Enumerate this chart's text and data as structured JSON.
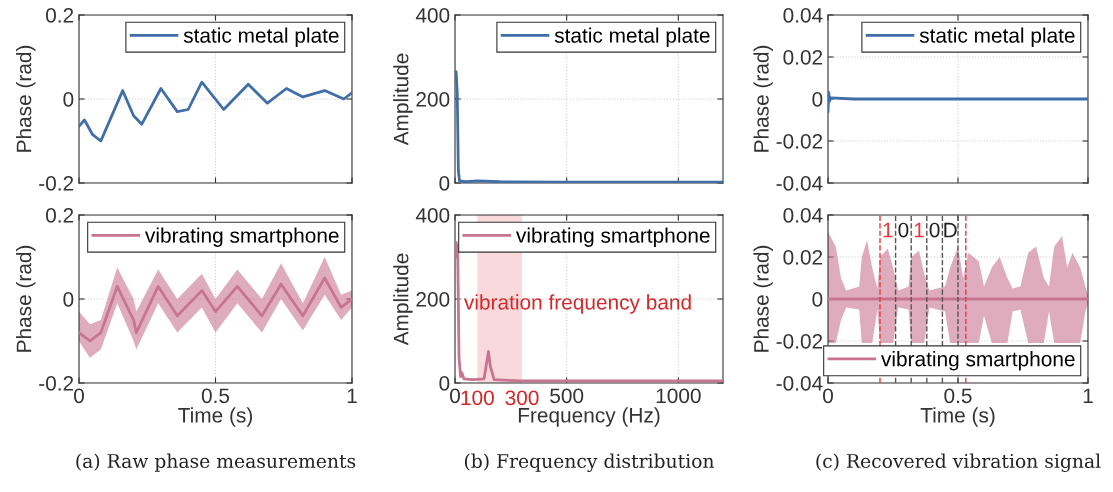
{
  "chart_data": [
    {
      "type": "line",
      "ylabel": "Phase (rad)",
      "xlim": [
        0,
        1
      ],
      "ylim": [
        -0.2,
        0.2
      ],
      "xticks": [
        0,
        0.5,
        1
      ],
      "yticks": [
        {
          "value": -0.2,
          "label": "-0.2"
        },
        0,
        0.2
      ],
      "grid": true,
      "legend": "top right",
      "tick_labels": "y",
      "series": [
        {
          "name": "static metal plate",
          "color": "#3f6ea8",
          "x": [
            0,
            0.02,
            0.05,
            0.08,
            0.1,
            0.16,
            0.2,
            0.23,
            0.3,
            0.36,
            0.4,
            0.45,
            0.53,
            0.62,
            0.69,
            0.76,
            0.82,
            0.9,
            0.97,
            1
          ],
          "values": [
            -0.065,
            -0.05,
            -0.085,
            -0.1,
            -0.07,
            0.02,
            -0.04,
            -0.06,
            0.025,
            -0.03,
            -0.025,
            0.04,
            -0.025,
            0.035,
            -0.01,
            0.025,
            0.005,
            0.02,
            0.0,
            0.015
          ]
        }
      ]
    },
    {
      "type": "line",
      "ylabel": "Amplitude",
      "xlim": [
        0,
        1200
      ],
      "ylim": [
        0,
        400
      ],
      "xticks": [
        0,
        500,
        1000
      ],
      "yticks": [
        0,
        200,
        400
      ],
      "grid": true,
      "legend": "top right",
      "tick_labels": "y",
      "series": [
        {
          "name": "static metal plate",
          "color": "#3f6ea8",
          "x": [
            0,
            5,
            10,
            15,
            20,
            50,
            100,
            200,
            500,
            1200
          ],
          "values": [
            260,
            265,
            215,
            30,
            5,
            3,
            5,
            3,
            2,
            2
          ]
        }
      ]
    },
    {
      "type": "line",
      "ylabel": "Phase (rad)",
      "xlim": [
        0,
        1
      ],
      "ylim": [
        -0.04,
        0.04
      ],
      "xticks": [
        0,
        0.5,
        1
      ],
      "yticks": [
        {
          "value": -0.04,
          "label": "-0.04"
        },
        {
          "value": -0.02,
          "label": "-0.02"
        },
        0,
        0.02,
        0.04
      ],
      "grid": true,
      "legend": "top right",
      "tick_labels": "y",
      "series": [
        {
          "name": "static metal plate",
          "color": "#3f6ea8",
          "x": [
            0,
            0.003,
            0.006,
            0.01,
            0.1,
            0.25,
            0.5,
            0.75,
            1
          ],
          "values": [
            -0.006,
            0.003,
            -0.001,
            0.0005,
            0.0,
            0.0,
            0.0,
            0.0,
            0.0
          ]
        }
      ]
    },
    {
      "type": "line",
      "xlabel": "Time (s)",
      "ylabel": "Phase (rad)",
      "xlim": [
        0,
        1
      ],
      "ylim": [
        -0.2,
        0.2
      ],
      "xticks": [
        0,
        0.5,
        1
      ],
      "yticks": [
        {
          "value": -0.2,
          "label": "-0.2"
        },
        0,
        0.2
      ],
      "grid": true,
      "legend": "top right",
      "annotations": [
        "(a) Raw phase measurements"
      ],
      "series": [
        {
          "name": "vibrating smartphone",
          "color": "#c87490",
          "x": [
            0,
            0.04,
            0.08,
            0.14,
            0.2,
            0.21,
            0.29,
            0.36,
            0.45,
            0.5,
            0.58,
            0.67,
            0.74,
            0.82,
            0.9,
            0.96,
            1
          ],
          "values": [
            -0.08,
            -0.1,
            -0.08,
            0.03,
            -0.05,
            -0.08,
            0.03,
            -0.04,
            0.02,
            -0.03,
            0.03,
            -0.04,
            0.035,
            -0.04,
            0.05,
            -0.02,
            0.0
          ],
          "lower": [
            -0.1,
            -0.14,
            -0.12,
            -0.01,
            -0.1,
            -0.12,
            -0.01,
            -0.08,
            -0.02,
            -0.08,
            -0.01,
            -0.08,
            0.0,
            -0.075,
            0.01,
            -0.05,
            -0.02
          ],
          "upper": [
            -0.03,
            -0.06,
            -0.05,
            0.075,
            0.0,
            -0.03,
            0.07,
            0.0,
            0.06,
            0.0,
            0.07,
            0.0,
            0.085,
            -0.01,
            0.1,
            0.01,
            0.02
          ]
        }
      ]
    },
    {
      "type": "line",
      "xlabel": "Frequency (Hz)",
      "ylabel": "Amplitude",
      "xlim": [
        0,
        1200
      ],
      "ylim": [
        0,
        400
      ],
      "xticks": [
        0,
        500,
        1000
      ],
      "yticks": [
        0,
        200,
        400
      ],
      "grid": true,
      "legend": "top right",
      "bands": [
        {
          "axis": "x",
          "from": 100,
          "to": 300,
          "label": "vibration frequency band",
          "color": "#f9d9dc"
        }
      ],
      "annotations": [
        {
          "text": "100",
          "x": 100,
          "y": 0
        },
        {
          "text": "300",
          "x": 300,
          "y": 0
        },
        "(b) Frequency distribution"
      ],
      "series": [
        {
          "name": "vibrating smartphone",
          "color": "#c87490",
          "x": [
            0,
            5,
            12,
            18,
            25,
            30,
            40,
            80,
            130,
            150,
            158,
            175,
            300,
            1200
          ],
          "values": [
            300,
            335,
            320,
            60,
            15,
            25,
            10,
            8,
            10,
            75,
            40,
            8,
            5,
            5
          ]
        }
      ]
    },
    {
      "type": "line",
      "xlabel": "Time (s)",
      "ylabel": "Phase (rad)",
      "xlim": [
        0,
        1
      ],
      "ylim": [
        -0.04,
        0.04
      ],
      "xticks": [
        0,
        0.5,
        1
      ],
      "yticks": [
        {
          "value": -0.04,
          "label": "-0.04"
        },
        {
          "value": -0.02,
          "label": "-0.02"
        },
        0,
        0.02,
        0.04
      ],
      "grid": true,
      "legend": "bottom right",
      "ref_lines": [
        {
          "axis": "x",
          "value": 0.2,
          "color": "#e8393a",
          "line_style": "dashed"
        },
        {
          "axis": "x",
          "value": 0.26,
          "color": "#555555",
          "line_style": "dashed"
        },
        {
          "axis": "x",
          "value": 0.32,
          "color": "#555555",
          "line_style": "dashed"
        },
        {
          "axis": "x",
          "value": 0.38,
          "color": "#555555",
          "line_style": "dashed"
        },
        {
          "axis": "x",
          "value": 0.44,
          "color": "#555555",
          "line_style": "dashed"
        },
        {
          "axis": "x",
          "value": 0.5,
          "color": "#555555",
          "line_style": "dashed"
        },
        {
          "axis": "x",
          "value": 0.53,
          "color": "#e8393a",
          "line_style": "dashed"
        }
      ],
      "annotations": [
        "1",
        "0",
        "1",
        "0",
        "D",
        "(c) Recovered vibration signal"
      ],
      "series": [
        {
          "name": "vibrating smartphone",
          "color": "#c87490",
          "x": [
            0,
            0.03,
            0.05,
            0.07,
            0.12,
            0.13,
            0.15,
            0.17,
            0.19,
            0.2,
            0.23,
            0.25,
            0.27,
            0.31,
            0.32,
            0.35,
            0.37,
            0.39,
            0.45,
            0.47,
            0.5,
            0.52,
            0.54,
            0.58,
            0.6,
            0.63,
            0.66,
            0.69,
            0.71,
            0.74,
            0.77,
            0.8,
            0.83,
            0.85,
            0.87,
            0.9,
            0.92,
            0.94,
            0.97,
            0.99,
            1
          ],
          "values": [
            0,
            0,
            0,
            0,
            0,
            0,
            0,
            0,
            0,
            0,
            0,
            0,
            0,
            0,
            0,
            0,
            0,
            0,
            0,
            0,
            0,
            0,
            0,
            0,
            0,
            0,
            0,
            0,
            0,
            0,
            0,
            0,
            0,
            0,
            0,
            0,
            0,
            0,
            0,
            0,
            0
          ],
          "lower": [
            -0.021,
            -0.021,
            -0.01,
            -0.004,
            -0.005,
            -0.021,
            -0.021,
            -0.021,
            -0.005,
            -0.021,
            -0.021,
            -0.021,
            -0.004,
            -0.005,
            -0.021,
            -0.021,
            -0.021,
            -0.004,
            -0.006,
            -0.021,
            -0.021,
            -0.021,
            -0.021,
            -0.021,
            -0.008,
            -0.021,
            -0.021,
            -0.021,
            -0.006,
            -0.005,
            -0.021,
            -0.021,
            -0.021,
            -0.006,
            -0.021,
            -0.021,
            -0.021,
            -0.021,
            -0.021,
            -0.006,
            -0.002
          ],
          "upper": [
            0.032,
            0.025,
            0.01,
            0.004,
            0.006,
            0.02,
            0.028,
            0.015,
            0.005,
            0.02,
            0.024,
            0.015,
            0.004,
            0.006,
            0.02,
            0.023,
            0.012,
            0.004,
            0.006,
            0.015,
            0.025,
            0.01,
            0.022,
            0.018,
            0.006,
            0.015,
            0.02,
            0.01,
            0.005,
            0.006,
            0.022,
            0.025,
            0.01,
            0.006,
            0.025,
            0.03,
            0.015,
            0.022,
            0.015,
            0.006,
            0.002
          ]
        }
      ]
    }
  ]
}
